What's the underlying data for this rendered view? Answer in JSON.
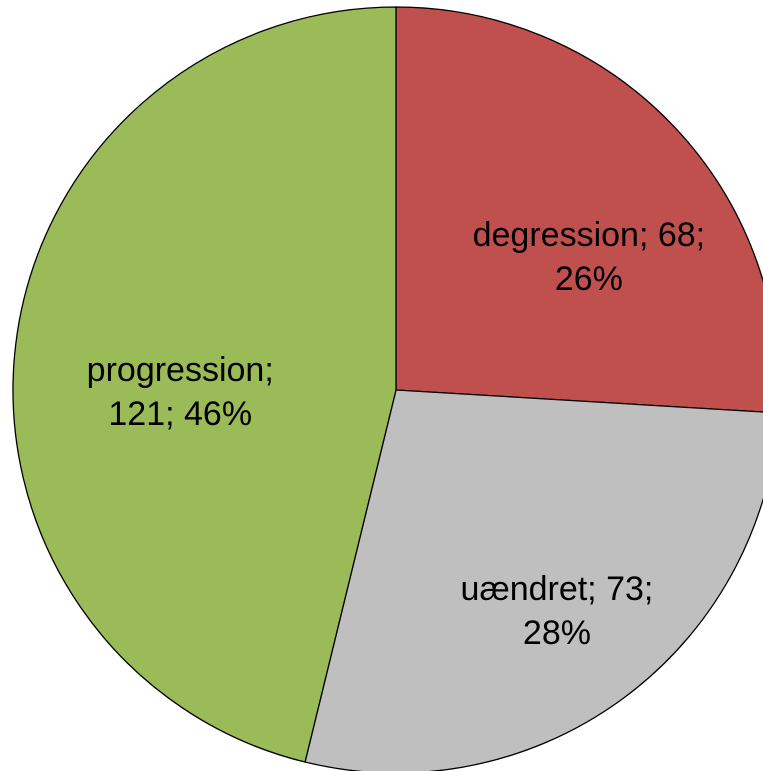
{
  "chart_data": {
    "type": "pie",
    "values": [
      68,
      73,
      121
    ],
    "value_labels": [
      "degression; 68; 26%",
      "uændret; 73; 28%",
      "progression; 121; 46%"
    ],
    "colors": [
      "#c0504d",
      "#bfbfbf",
      "#9bbb59"
    ]
  }
}
